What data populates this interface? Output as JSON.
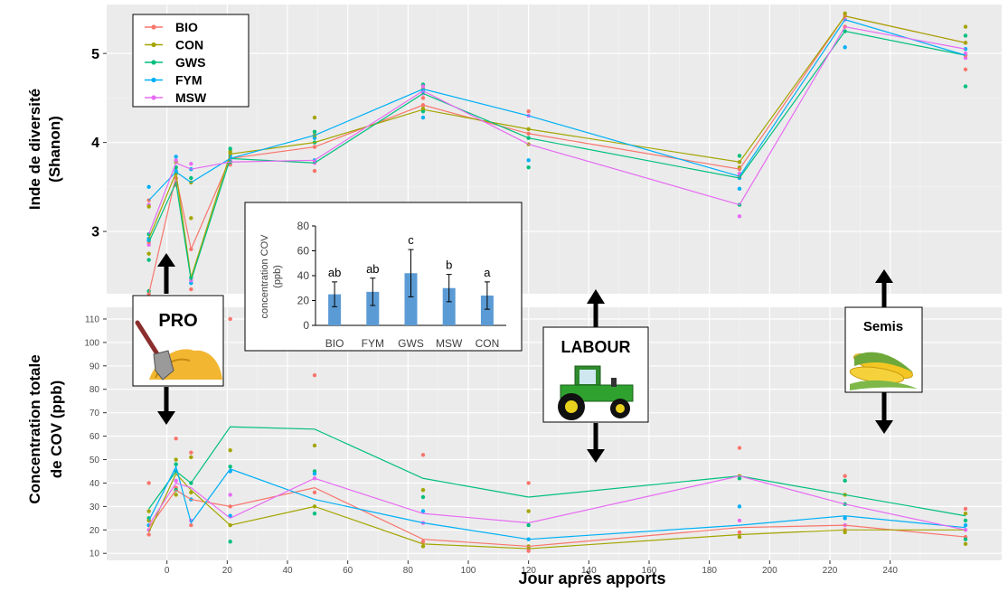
{
  "chart_data": [
    {
      "id": "diversity",
      "type": "line",
      "ylabel_line1": "Inde de diversité",
      "ylabel_line2": "(Shanon)",
      "ylim": [
        2.3,
        5.55
      ],
      "yticks": [
        3,
        4,
        5
      ],
      "xlim": [
        -20,
        277
      ],
      "xticks": [
        0,
        20,
        40,
        60,
        80,
        100,
        120,
        140,
        160,
        180,
        200,
        220,
        240
      ],
      "grid": true,
      "legend_position": "top-left",
      "x": [
        -6,
        3,
        8,
        21,
        49,
        85,
        120,
        190,
        225,
        265
      ],
      "series": [
        {
          "name": "BIO",
          "color": "#F8766D",
          "values": [
            2.3,
            3.62,
            2.8,
            3.82,
            3.95,
            4.42,
            4.1,
            3.7,
            5.42,
            5.12
          ]
        },
        {
          "name": "CON",
          "color": "#A3A500",
          "values": [
            2.92,
            3.66,
            2.48,
            3.87,
            4.0,
            4.37,
            4.15,
            3.78,
            5.42,
            5.12
          ]
        },
        {
          "name": "GWS",
          "color": "#00BF7D",
          "values": [
            2.88,
            3.55,
            2.45,
            3.82,
            3.77,
            4.55,
            4.05,
            3.6,
            5.25,
            4.98
          ]
        },
        {
          "name": "FYM",
          "color": "#00B0F6",
          "values": [
            3.35,
            3.67,
            3.55,
            3.82,
            4.08,
            4.6,
            4.3,
            3.62,
            5.38,
            4.98
          ]
        },
        {
          "name": "MSW",
          "color": "#E76BF3",
          "values": [
            2.97,
            3.77,
            3.7,
            3.78,
            3.8,
            4.58,
            3.98,
            3.3,
            5.3,
            5.05
          ]
        }
      ],
      "points": [
        {
          "x": -6,
          "ys": [
            2.3,
            2.22,
            2.33,
            2.92,
            2.85,
            2.88,
            2.75,
            2.68,
            3.5,
            3.3,
            3.35,
            3.28,
            2.97,
            2.9
          ]
        },
        {
          "x": 3,
          "ys": [
            3.6,
            3.65,
            3.66,
            3.68,
            3.55,
            3.52,
            3.78,
            3.72,
            3.84,
            3.8
          ]
        },
        {
          "x": 8,
          "ys": [
            2.8,
            3.15,
            2.48,
            2.42,
            2.45,
            2.35,
            3.55,
            3.6,
            3.7,
            3.76
          ]
        },
        {
          "x": 21,
          "ys": [
            3.82,
            3.9,
            3.93,
            3.85,
            3.8,
            3.75,
            3.88,
            3.78
          ]
        },
        {
          "x": 49,
          "ys": [
            3.95,
            4.28,
            4.0,
            4.05,
            3.77,
            3.68,
            4.08,
            4.12,
            3.8,
            3.78
          ]
        },
        {
          "x": 85,
          "ys": [
            4.42,
            4.38,
            4.35,
            4.28,
            4.55,
            4.5,
            4.6,
            4.65,
            4.58,
            4.63
          ]
        },
        {
          "x": 120,
          "ys": [
            4.1,
            4.15,
            4.05,
            3.8,
            4.3,
            4.35,
            3.98,
            3.72
          ]
        },
        {
          "x": 190,
          "ys": [
            3.7,
            3.78,
            3.85,
            3.6,
            3.65,
            3.62,
            3.72,
            3.3,
            3.48,
            3.17
          ]
        },
        {
          "x": 225,
          "ys": [
            5.42,
            5.45,
            5.25,
            5.07,
            5.38,
            5.3
          ]
        },
        {
          "x": 265,
          "ys": [
            5.12,
            5.3,
            5.2,
            4.98,
            4.95,
            4.98,
            5.12,
            4.63,
            5.05,
            5.0,
            4.82
          ]
        }
      ]
    },
    {
      "id": "cov",
      "type": "line",
      "ylabel_line1": "Concentration totale",
      "ylabel_line2": "de COV (ppb)",
      "xlabel": "Jour après apports",
      "ylim": [
        7,
        115
      ],
      "yticks": [
        10,
        20,
        30,
        40,
        50,
        60,
        70,
        80,
        90,
        100,
        110
      ],
      "xlim": [
        -20,
        277
      ],
      "xticks": [
        0,
        20,
        40,
        60,
        80,
        100,
        120,
        140,
        160,
        180,
        200,
        220,
        240
      ],
      "grid": true,
      "x": [
        -6,
        3,
        8,
        21,
        49,
        85,
        120,
        190,
        225,
        265
      ],
      "series": [
        {
          "name": "BIO",
          "color": "#F8766D",
          "values": [
            21,
            37,
            33,
            30,
            38,
            16,
            13,
            21,
            22,
            17
          ]
        },
        {
          "name": "CON",
          "color": "#A3A500",
          "values": [
            19,
            44,
            37,
            22,
            30,
            14,
            12,
            18,
            20,
            20
          ]
        },
        {
          "name": "GWS",
          "color": "#00BF7D",
          "values": [
            29,
            45,
            40,
            64,
            63,
            42,
            34,
            43,
            35,
            26
          ]
        },
        {
          "name": "FYM",
          "color": "#00B0F6",
          "values": [
            24,
            47,
            23,
            46,
            33,
            23,
            16,
            22,
            26,
            21
          ]
        },
        {
          "name": "MSW",
          "color": "#E76BF3",
          "values": [
            22,
            40,
            38,
            25,
            42,
            27,
            23,
            43,
            31,
            20
          ]
        }
      ],
      "points": [
        {
          "x": -6,
          "ys": [
            40,
            28,
            25,
            22,
            20,
            18,
            24
          ]
        },
        {
          "x": 3,
          "ys": [
            59,
            50,
            48,
            45,
            41,
            38,
            35,
            37
          ]
        },
        {
          "x": 8,
          "ys": [
            53,
            51,
            40,
            33,
            24,
            22,
            36
          ]
        },
        {
          "x": 21,
          "ys": [
            110,
            54,
            47,
            45,
            35,
            30,
            22,
            15,
            26
          ]
        },
        {
          "x": 49,
          "ys": [
            86,
            56,
            45,
            44,
            42,
            36,
            30,
            27
          ]
        },
        {
          "x": 85,
          "ys": [
            52,
            37,
            34,
            28,
            23,
            15,
            13
          ]
        },
        {
          "x": 120,
          "ys": [
            40,
            28,
            22,
            16,
            12,
            11,
            13
          ]
        },
        {
          "x": 190,
          "ys": [
            55,
            43,
            42,
            30,
            24,
            19,
            17
          ]
        },
        {
          "x": 225,
          "ys": [
            43,
            35,
            31,
            25,
            22,
            20,
            19,
            41
          ]
        },
        {
          "x": 265,
          "ys": [
            29,
            27,
            24,
            22,
            20,
            17,
            14,
            16
          ]
        }
      ]
    },
    {
      "id": "inset",
      "type": "bar",
      "ylabel_line1": "concentration COV",
      "ylabel_line2": "(ppb)",
      "ylim": [
        0,
        80
      ],
      "yticks": [
        0,
        20,
        40,
        60,
        80
      ],
      "categories": [
        "BIO",
        "FYM",
        "GWS",
        "MSW",
        "CON"
      ],
      "values": [
        25,
        27,
        42,
        30,
        24
      ],
      "errors": [
        10,
        11,
        19,
        11,
        11
      ],
      "letters": [
        "ab",
        "ab",
        "c",
        "b",
        "a"
      ],
      "bar_color": "#5B9BD5"
    }
  ],
  "annotations": {
    "pro": "PRO",
    "labour": "LABOUR",
    "semis": "Semis"
  },
  "icons": {
    "pro": "shovel-compost-icon",
    "labour": "tractor-icon",
    "semis": "corn-icon"
  }
}
